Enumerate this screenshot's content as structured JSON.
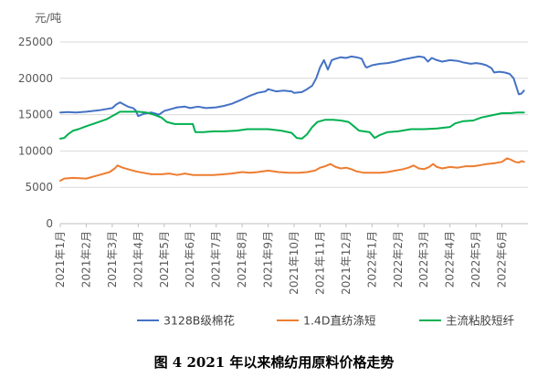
{
  "caption": "图 4   2021 年以来棉纺用原料价格走势",
  "chart_data": {
    "type": "line",
    "unit_label": "元/吨",
    "ylim": [
      0,
      25000
    ],
    "yticks": [
      0,
      5000,
      10000,
      15000,
      20000,
      25000
    ],
    "x_ticks": [
      "2021年1月",
      "2021年2月",
      "2021年3月",
      "2021年4月",
      "2021年5月",
      "2021年6月",
      "2021年7月",
      "2021年8月",
      "2021年9月",
      "2021年10月",
      "2021年11月",
      "2021年12月",
      "2022年1月",
      "2022年2月",
      "2022年3月",
      "2022年4月",
      "2022年5月",
      "2022年6月"
    ],
    "x_range": [
      0,
      17.85
    ],
    "grid": true,
    "legend_position": "bottom",
    "series": [
      {
        "name": "3128B级棉花",
        "color": "#4472C4",
        "points": [
          [
            0,
            15300
          ],
          [
            0.3,
            15350
          ],
          [
            0.6,
            15300
          ],
          [
            1.0,
            15400
          ],
          [
            1.5,
            15600
          ],
          [
            2.0,
            15900
          ],
          [
            2.15,
            16400
          ],
          [
            2.3,
            16700
          ],
          [
            2.45,
            16400
          ],
          [
            2.6,
            16100
          ],
          [
            2.8,
            15900
          ],
          [
            2.9,
            15600
          ],
          [
            3.0,
            14800
          ],
          [
            3.2,
            15100
          ],
          [
            3.5,
            15300
          ],
          [
            3.8,
            15000
          ],
          [
            4.0,
            15500
          ],
          [
            4.3,
            15800
          ],
          [
            4.5,
            16000
          ],
          [
            4.8,
            16100
          ],
          [
            5.0,
            15900
          ],
          [
            5.3,
            16100
          ],
          [
            5.6,
            15900
          ],
          [
            6.0,
            16000
          ],
          [
            6.3,
            16200
          ],
          [
            6.6,
            16500
          ],
          [
            6.8,
            16800
          ],
          [
            7.0,
            17100
          ],
          [
            7.3,
            17600
          ],
          [
            7.6,
            18000
          ],
          [
            7.9,
            18200
          ],
          [
            8.0,
            18500
          ],
          [
            8.3,
            18200
          ],
          [
            8.6,
            18300
          ],
          [
            8.9,
            18200
          ],
          [
            9.0,
            18000
          ],
          [
            9.3,
            18100
          ],
          [
            9.5,
            18500
          ],
          [
            9.7,
            19000
          ],
          [
            9.85,
            20000
          ],
          [
            10.0,
            21500
          ],
          [
            10.15,
            22500
          ],
          [
            10.3,
            21200
          ],
          [
            10.45,
            22500
          ],
          [
            10.6,
            22700
          ],
          [
            10.8,
            22900
          ],
          [
            11.0,
            22800
          ],
          [
            11.2,
            23000
          ],
          [
            11.4,
            22900
          ],
          [
            11.6,
            22700
          ],
          [
            11.75,
            21600
          ],
          [
            11.8,
            21500
          ],
          [
            12.0,
            21800
          ],
          [
            12.3,
            22000
          ],
          [
            12.6,
            22100
          ],
          [
            12.9,
            22300
          ],
          [
            13.2,
            22600
          ],
          [
            13.5,
            22800
          ],
          [
            13.8,
            23000
          ],
          [
            14.0,
            22900
          ],
          [
            14.15,
            22300
          ],
          [
            14.3,
            22800
          ],
          [
            14.5,
            22500
          ],
          [
            14.7,
            22300
          ],
          [
            15.0,
            22500
          ],
          [
            15.3,
            22400
          ],
          [
            15.5,
            22200
          ],
          [
            15.8,
            22000
          ],
          [
            16.0,
            22100
          ],
          [
            16.2,
            22000
          ],
          [
            16.4,
            21800
          ],
          [
            16.6,
            21400
          ],
          [
            16.7,
            20800
          ],
          [
            16.9,
            20900
          ],
          [
            17.1,
            20800
          ],
          [
            17.3,
            20600
          ],
          [
            17.45,
            20000
          ],
          [
            17.55,
            18900
          ],
          [
            17.65,
            17800
          ],
          [
            17.75,
            17900
          ],
          [
            17.85,
            18300
          ]
        ]
      },
      {
        "name": "1.4D直纺涤短",
        "color": "#ED7D31",
        "points": [
          [
            0,
            5900
          ],
          [
            0.15,
            6200
          ],
          [
            0.5,
            6300
          ],
          [
            1.0,
            6200
          ],
          [
            1.5,
            6700
          ],
          [
            1.9,
            7100
          ],
          [
            2.1,
            7600
          ],
          [
            2.2,
            8000
          ],
          [
            2.4,
            7700
          ],
          [
            2.6,
            7500
          ],
          [
            2.9,
            7200
          ],
          [
            3.2,
            7000
          ],
          [
            3.5,
            6800
          ],
          [
            3.9,
            6800
          ],
          [
            4.2,
            6900
          ],
          [
            4.5,
            6700
          ],
          [
            4.8,
            6900
          ],
          [
            5.1,
            6700
          ],
          [
            5.5,
            6700
          ],
          [
            5.9,
            6700
          ],
          [
            6.3,
            6800
          ],
          [
            6.6,
            6900
          ],
          [
            7.0,
            7100
          ],
          [
            7.3,
            7000
          ],
          [
            7.6,
            7100
          ],
          [
            8.0,
            7300
          ],
          [
            8.4,
            7100
          ],
          [
            8.8,
            7000
          ],
          [
            9.2,
            7000
          ],
          [
            9.5,
            7100
          ],
          [
            9.8,
            7300
          ],
          [
            10.0,
            7700
          ],
          [
            10.2,
            7900
          ],
          [
            10.4,
            8200
          ],
          [
            10.6,
            7800
          ],
          [
            10.8,
            7600
          ],
          [
            11.0,
            7700
          ],
          [
            11.2,
            7500
          ],
          [
            11.4,
            7200
          ],
          [
            11.7,
            7000
          ],
          [
            12.0,
            7000
          ],
          [
            12.3,
            7000
          ],
          [
            12.6,
            7100
          ],
          [
            12.9,
            7300
          ],
          [
            13.2,
            7500
          ],
          [
            13.4,
            7700
          ],
          [
            13.6,
            8000
          ],
          [
            13.8,
            7600
          ],
          [
            14.0,
            7500
          ],
          [
            14.2,
            7800
          ],
          [
            14.35,
            8200
          ],
          [
            14.5,
            7800
          ],
          [
            14.7,
            7600
          ],
          [
            15.0,
            7800
          ],
          [
            15.3,
            7700
          ],
          [
            15.6,
            7900
          ],
          [
            15.9,
            7900
          ],
          [
            16.1,
            8000
          ],
          [
            16.4,
            8200
          ],
          [
            16.7,
            8300
          ],
          [
            17.0,
            8500
          ],
          [
            17.2,
            9000
          ],
          [
            17.35,
            8800
          ],
          [
            17.5,
            8500
          ],
          [
            17.65,
            8400
          ],
          [
            17.75,
            8600
          ],
          [
            17.85,
            8500
          ]
        ]
      },
      {
        "name": "主流粘胶短纤",
        "color": "#00B050",
        "points": [
          [
            0,
            11700
          ],
          [
            0.15,
            11800
          ],
          [
            0.3,
            12300
          ],
          [
            0.5,
            12800
          ],
          [
            0.7,
            13000
          ],
          [
            1.0,
            13400
          ],
          [
            1.4,
            13900
          ],
          [
            1.8,
            14400
          ],
          [
            2.1,
            15000
          ],
          [
            2.3,
            15400
          ],
          [
            2.6,
            15400
          ],
          [
            3.0,
            15400
          ],
          [
            3.3,
            15300
          ],
          [
            3.6,
            15000
          ],
          [
            3.9,
            14600
          ],
          [
            4.1,
            14000
          ],
          [
            4.4,
            13700
          ],
          [
            4.8,
            13700
          ],
          [
            5.1,
            13700
          ],
          [
            5.2,
            12600
          ],
          [
            5.5,
            12600
          ],
          [
            5.9,
            12700
          ],
          [
            6.3,
            12700
          ],
          [
            6.8,
            12800
          ],
          [
            7.2,
            13000
          ],
          [
            7.6,
            13000
          ],
          [
            8.0,
            13000
          ],
          [
            8.5,
            12800
          ],
          [
            8.9,
            12500
          ],
          [
            9.1,
            11800
          ],
          [
            9.3,
            11700
          ],
          [
            9.5,
            12300
          ],
          [
            9.7,
            13300
          ],
          [
            9.9,
            14000
          ],
          [
            10.2,
            14300
          ],
          [
            10.5,
            14300
          ],
          [
            10.8,
            14200
          ],
          [
            11.1,
            14000
          ],
          [
            11.3,
            13400
          ],
          [
            11.5,
            12800
          ],
          [
            11.9,
            12600
          ],
          [
            12.1,
            11800
          ],
          [
            12.3,
            12200
          ],
          [
            12.6,
            12600
          ],
          [
            13.0,
            12700
          ],
          [
            13.5,
            13000
          ],
          [
            14.0,
            13000
          ],
          [
            14.5,
            13100
          ],
          [
            15.0,
            13300
          ],
          [
            15.2,
            13800
          ],
          [
            15.5,
            14100
          ],
          [
            15.9,
            14200
          ],
          [
            16.2,
            14600
          ],
          [
            16.6,
            14900
          ],
          [
            17.0,
            15200
          ],
          [
            17.3,
            15200
          ],
          [
            17.6,
            15300
          ],
          [
            17.85,
            15300
          ]
        ]
      }
    ]
  }
}
